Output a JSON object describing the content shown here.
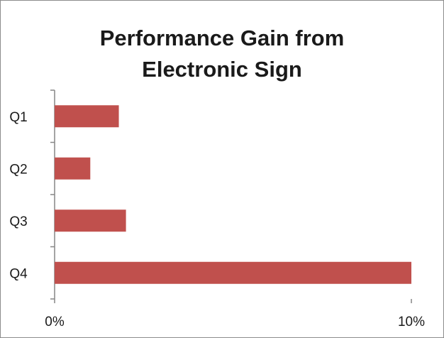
{
  "chart_data": {
    "type": "bar",
    "orientation": "horizontal",
    "title_lines": [
      "Performance Gain from",
      "Electronic Sign"
    ],
    "categories": [
      "Q1",
      "Q2",
      "Q3",
      "Q4"
    ],
    "values": [
      0.018,
      0.01,
      0.02,
      0.1
    ],
    "x_ticks": [
      "0%",
      "10%"
    ],
    "xlim": [
      0,
      0.1
    ],
    "grid": false,
    "legend": "none",
    "bar_color": "#c0504d"
  }
}
